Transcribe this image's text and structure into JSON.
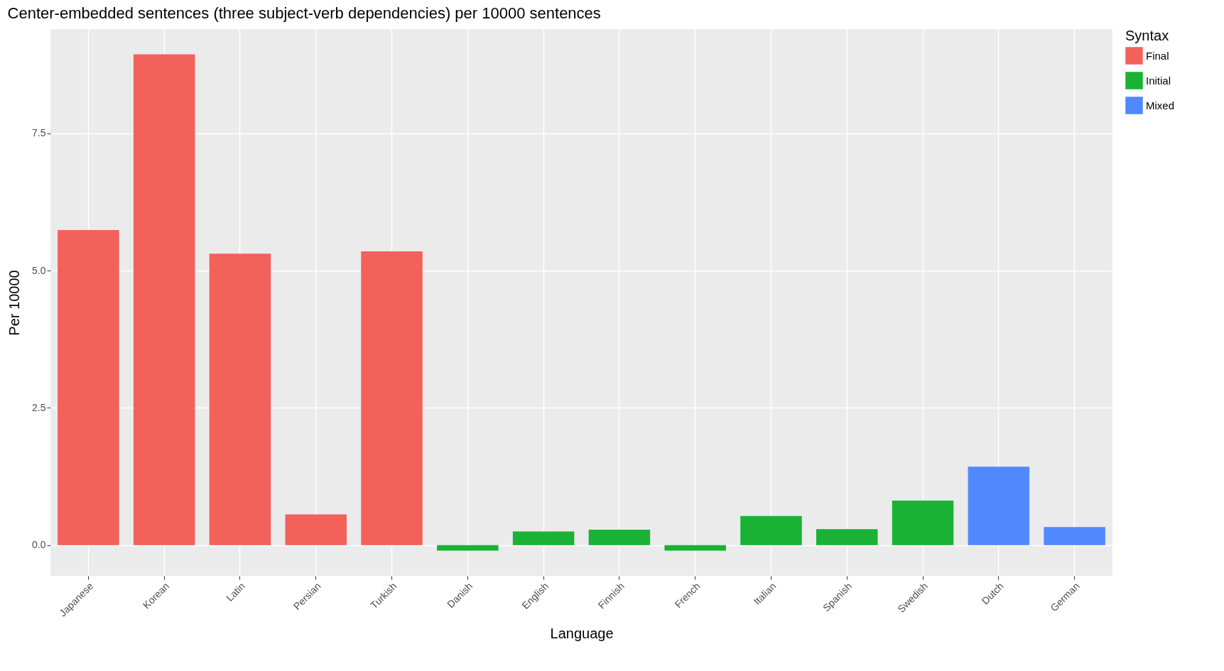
{
  "chart_data": {
    "type": "bar",
    "title": "Center-embedded sentences (three subject-verb dependencies) per 10000 sentences",
    "xlabel": "Language",
    "ylabel": "Per 10000",
    "legend_title": "Syntax",
    "categories": [
      "Japanese",
      "Korean",
      "Latin",
      "Persian",
      "Turkish",
      "Danish",
      "English",
      "Finnish",
      "French",
      "Italian",
      "Spanish",
      "Swedish",
      "Dutch",
      "German"
    ],
    "series": [
      {
        "name": "Final",
        "color": "#f3615b",
        "values": [
          5.74,
          8.94,
          5.31,
          0.56,
          5.35,
          null,
          null,
          null,
          null,
          null,
          null,
          null,
          null,
          null
        ]
      },
      {
        "name": "Initial",
        "color": "#1ab234",
        "values": [
          null,
          null,
          null,
          null,
          null,
          -0.1,
          0.25,
          0.28,
          -0.1,
          0.53,
          0.29,
          0.81,
          null,
          null
        ]
      },
      {
        "name": "Mixed",
        "color": "#5089fd",
        "values": [
          null,
          null,
          null,
          null,
          null,
          null,
          null,
          null,
          null,
          null,
          null,
          null,
          1.43,
          0.33
        ]
      }
    ],
    "ylim": [
      -0.56,
      9.4
    ],
    "yticks": [
      {
        "value": 0,
        "label": "0.0"
      },
      2.5,
      {
        "value": 5,
        "label": "5.0"
      },
      7.5
    ],
    "grid": true,
    "legend": "right"
  }
}
